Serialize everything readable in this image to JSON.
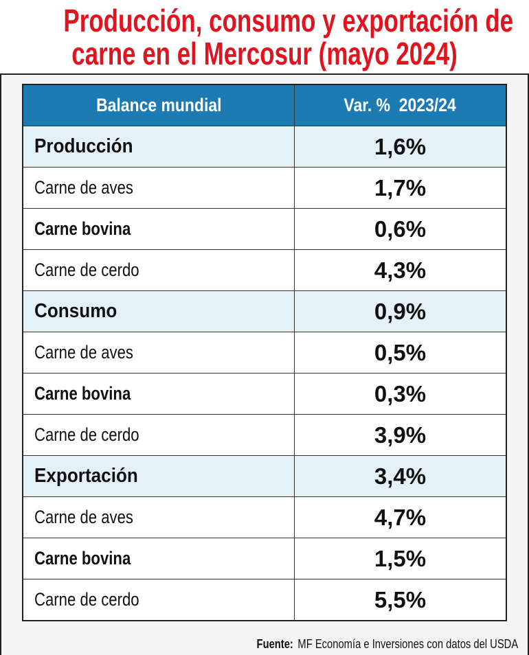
{
  "title": [
    "Producción, consumo y exportación de",
    "carne en el Mercosur (mayo 2024)"
  ],
  "table": {
    "header": [
      "Balance mundial",
      "Var. %  2023/24"
    ],
    "sections": [
      {
        "name": "Producción",
        "value": "1,6%",
        "items": [
          [
            "Carne de aves",
            "1,7%"
          ],
          [
            "Carne bovina",
            "0,6%"
          ],
          [
            "Carne de cerdo",
            "4,3%"
          ]
        ]
      },
      {
        "name": "Consumo",
        "value": "0,9%",
        "items": [
          [
            "Carne de aves",
            "0,5%"
          ],
          [
            "Carne bovina",
            "0,3%"
          ],
          [
            "Carne de cerdo",
            "3,9%"
          ]
        ]
      },
      {
        "name": "Exportación",
        "value": "3,4%",
        "items": [
          [
            "Carne de aves",
            "4,7%"
          ],
          [
            "Carne bovina",
            "1,5%"
          ],
          [
            "Carne de cerdo",
            "5,5%"
          ]
        ]
      }
    ]
  },
  "source": {
    "label": "Fuente:",
    "text": "MF Economía e Inversiones con datos del USDA"
  }
}
